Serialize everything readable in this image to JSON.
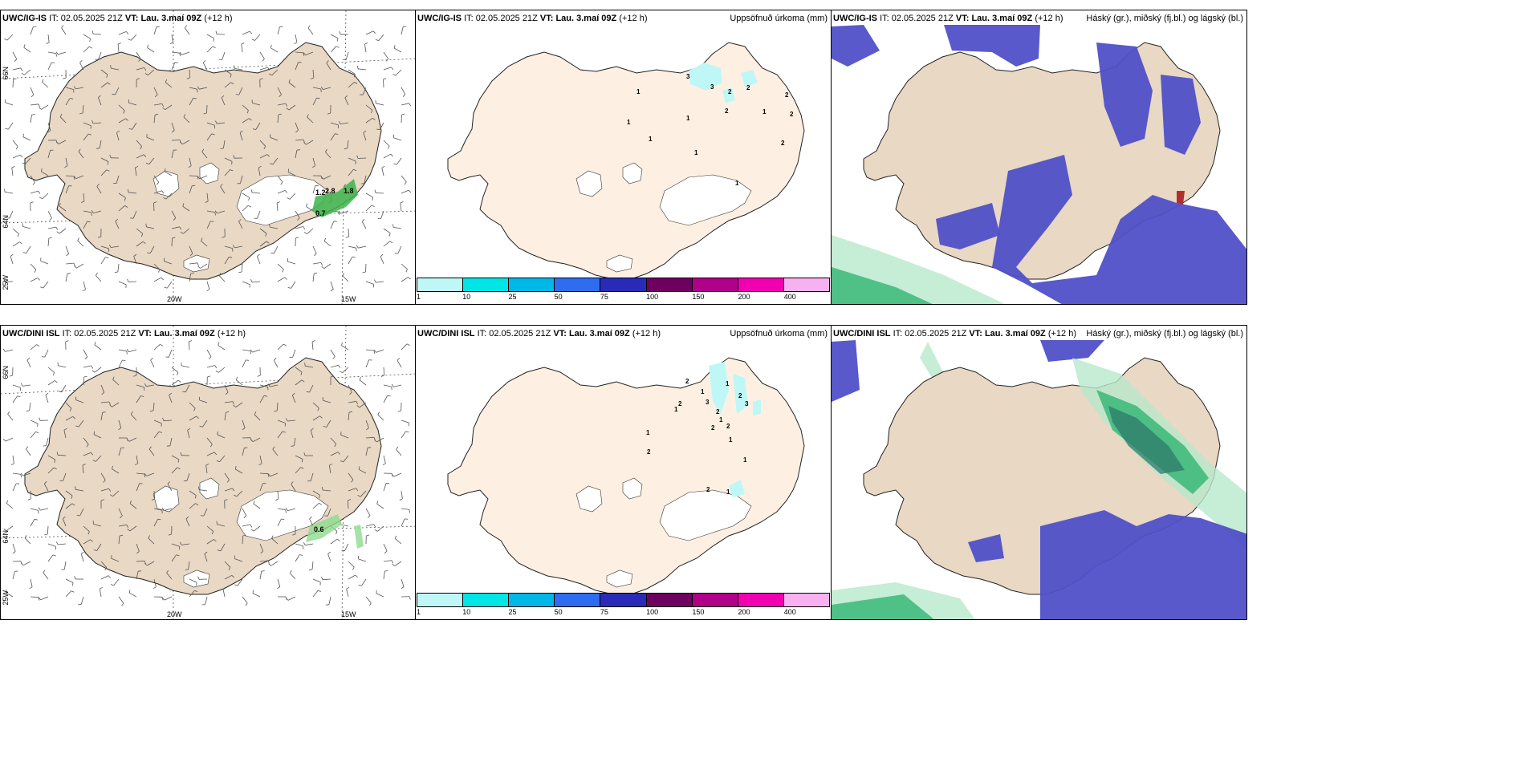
{
  "rows": [
    {
      "model": "UWC/IG-IS",
      "it_label": "IT:",
      "it": "02.05.2025 21Z",
      "vt_label": "VT:",
      "vt": "Lau. 3.maí 09Z",
      "lead": "(+12 h)",
      "wind_values": [
        "1.2",
        "2.8",
        "1.8",
        "0.7"
      ],
      "precip_values": [
        "3",
        "3",
        "2",
        "2",
        "2",
        "1",
        "1",
        "1",
        "1",
        "1",
        "1",
        "2",
        "2",
        "1",
        "2"
      ]
    },
    {
      "model": "UWC/DINI ISL",
      "it_label": "IT:",
      "it": "02.05.2025 21Z",
      "vt_label": "VT:",
      "vt": "Lau. 3.maí 09Z",
      "lead": "(+12 h)",
      "wind_values": [
        "0.6"
      ],
      "precip_values": [
        "2",
        "1",
        "1",
        "3",
        "2",
        "2",
        "3",
        "1",
        "2",
        "1",
        "2",
        "1",
        "2",
        "1",
        "2",
        "1",
        "2",
        "1"
      ]
    }
  ],
  "precip_title": "Uppsöfnuð úrkoma (mm)",
  "cloud_title": "Háský (gr.), miðský (fj.bl.) og lágský (bl.)",
  "axes": {
    "lon_20w": "20W",
    "lon_15w": "15W",
    "lat_66n": "66N",
    "lat_64n": "64N",
    "lon_25w": "25W"
  },
  "legend": {
    "ticks": [
      "1",
      "10",
      "25",
      "50",
      "75",
      "100",
      "150",
      "200",
      "400"
    ],
    "colors": [
      "#bff7f7",
      "#00e5e5",
      "#00b8e8",
      "#2e6cf0",
      "#2a2ab8",
      "#6e0060",
      "#b0008a",
      "#f000b0",
      "#f7b0f0"
    ]
  },
  "colors": {
    "land_wind": "#e8d8c4",
    "land_precip": "#fdf0e2",
    "cloud_low": "#5050c8",
    "cloud_mid": "#3ab878",
    "cloud_high": "#b8e8cc"
  }
}
